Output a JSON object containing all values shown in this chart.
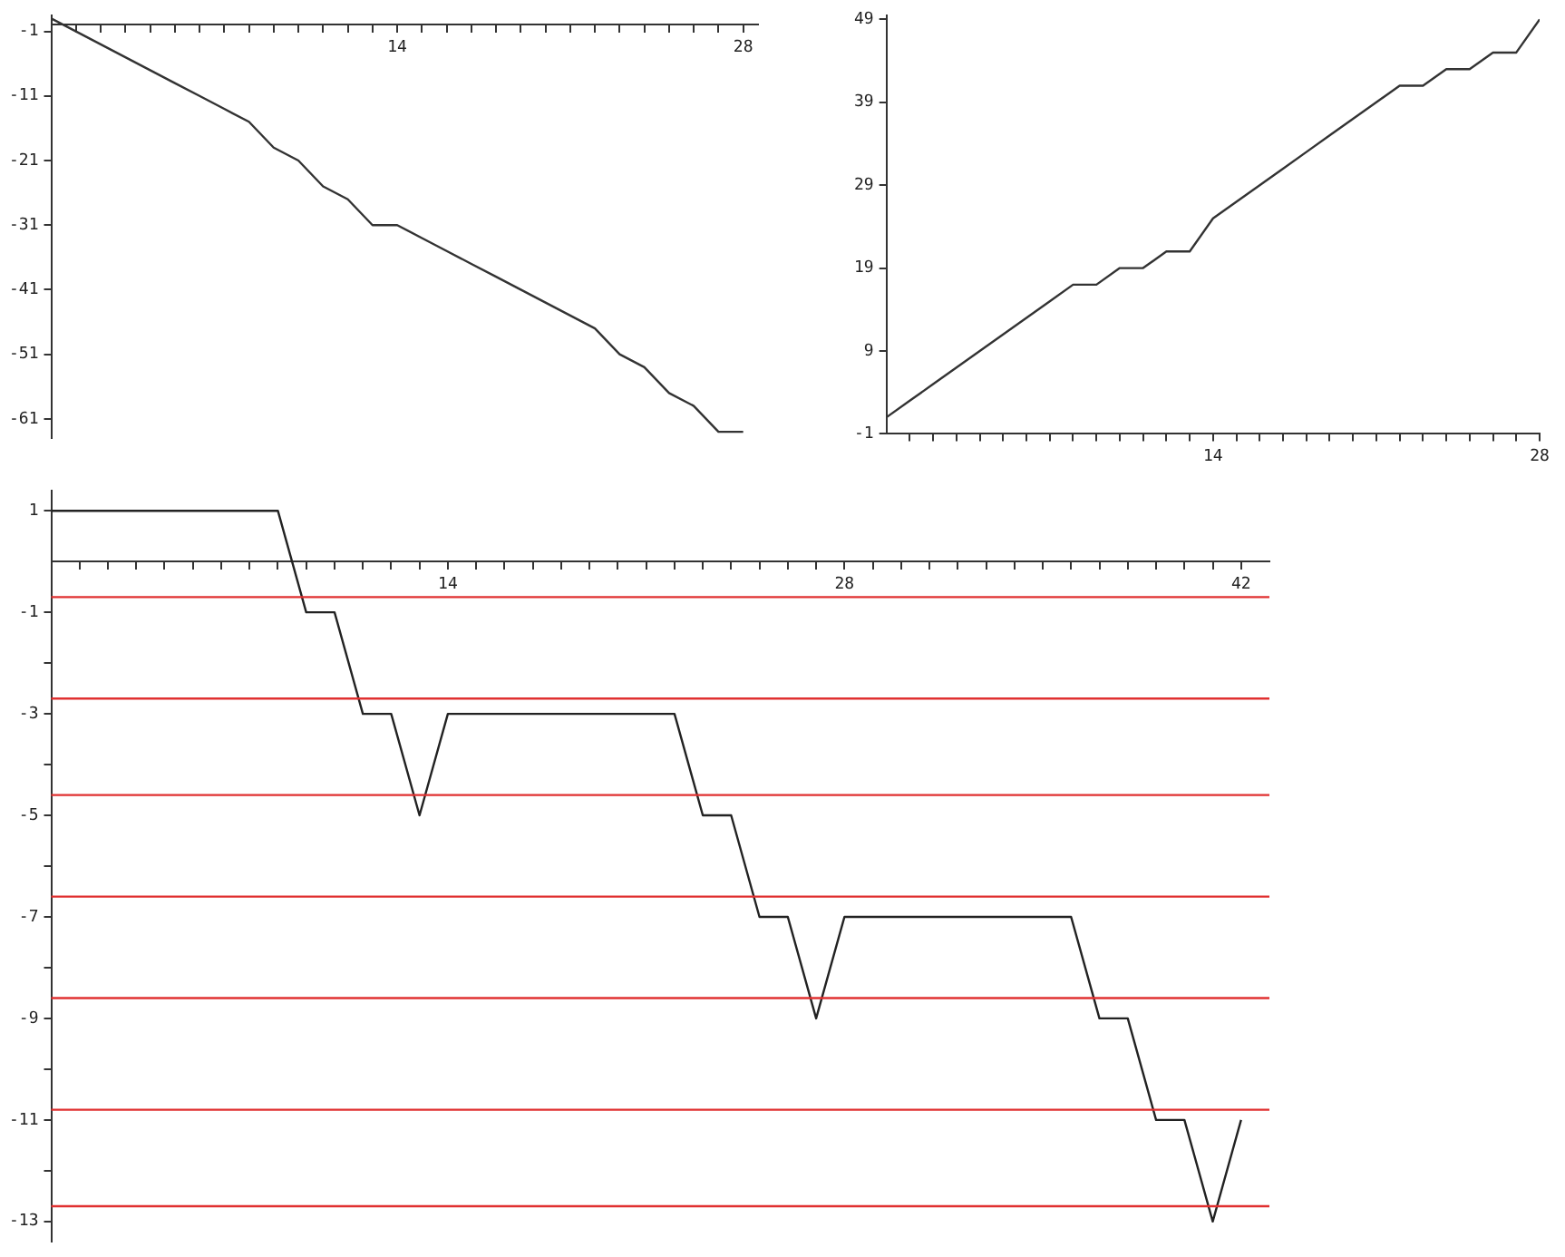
{
  "chart_data": [
    {
      "type": "line",
      "x": [
        0,
        1,
        2,
        3,
        4,
        5,
        6,
        7,
        8,
        9,
        10,
        11,
        12,
        13,
        14,
        15,
        16,
        17,
        18,
        19,
        20,
        21,
        22,
        23,
        24,
        25,
        26,
        27,
        28
      ],
      "values": [
        1,
        -1,
        -3,
        -5,
        -7,
        -9,
        -11,
        -13,
        -15,
        -19,
        -21,
        -25,
        -27,
        -31,
        -31,
        -33,
        -35,
        -37,
        -39,
        -41,
        -43,
        -45,
        -47,
        -51,
        -53,
        -57,
        -59,
        -63,
        -63
      ],
      "color": "#333333",
      "xlim": [
        0,
        28.6
      ],
      "ylim": [
        -64,
        1.5
      ],
      "xticks": [
        {
          "value": 1,
          "label": null
        },
        {
          "value": 2,
          "label": null
        },
        {
          "value": 3,
          "label": null
        },
        {
          "value": 4,
          "label": null
        },
        {
          "value": 5,
          "label": null
        },
        {
          "value": 6,
          "label": null
        },
        {
          "value": 7,
          "label": null
        },
        {
          "value": 8,
          "label": null
        },
        {
          "value": 9,
          "label": null
        },
        {
          "value": 10,
          "label": null
        },
        {
          "value": 11,
          "label": null
        },
        {
          "value": 12,
          "label": null
        },
        {
          "value": 13,
          "label": null
        },
        14,
        {
          "value": 15,
          "label": null
        },
        {
          "value": 16,
          "label": null
        },
        {
          "value": 17,
          "label": null
        },
        {
          "value": 18,
          "label": null
        },
        {
          "value": 19,
          "label": null
        },
        {
          "value": 20,
          "label": null
        },
        {
          "value": 21,
          "label": null
        },
        {
          "value": 22,
          "label": null
        },
        {
          "value": 23,
          "label": null
        },
        {
          "value": 24,
          "label": null
        },
        {
          "value": 25,
          "label": null
        },
        {
          "value": 26,
          "label": null
        },
        {
          "value": 27,
          "label": null
        },
        28
      ],
      "yticks": [
        -1,
        -11,
        -21,
        -31,
        -41,
        -51,
        -61
      ],
      "grid": false,
      "legend": false,
      "marker": "none",
      "line_style": "solid"
    },
    {
      "type": "line",
      "x": [
        0,
        1,
        2,
        3,
        4,
        5,
        6,
        7,
        8,
        9,
        10,
        11,
        12,
        13,
        14,
        15,
        16,
        17,
        18,
        19,
        20,
        21,
        22,
        23,
        24,
        25,
        26,
        27,
        28
      ],
      "values": [
        1,
        3,
        5,
        7,
        9,
        11,
        13,
        15,
        17,
        17,
        19,
        19,
        21,
        21,
        25,
        27,
        29,
        31,
        33,
        35,
        37,
        39,
        41,
        41,
        43,
        43,
        45,
        45,
        49
      ],
      "color": "#333333",
      "xlim": [
        0,
        28
      ],
      "ylim": [
        -1,
        49.5
      ],
      "xticks": [
        {
          "value": 1,
          "label": null
        },
        {
          "value": 2,
          "label": null
        },
        {
          "value": 3,
          "label": null
        },
        {
          "value": 4,
          "label": null
        },
        {
          "value": 5,
          "label": null
        },
        {
          "value": 6,
          "label": null
        },
        {
          "value": 7,
          "label": null
        },
        {
          "value": 8,
          "label": null
        },
        {
          "value": 9,
          "label": null
        },
        {
          "value": 10,
          "label": null
        },
        {
          "value": 11,
          "label": null
        },
        {
          "value": 12,
          "label": null
        },
        {
          "value": 13,
          "label": null
        },
        14,
        {
          "value": 15,
          "label": null
        },
        {
          "value": 16,
          "label": null
        },
        {
          "value": 17,
          "label": null
        },
        {
          "value": 18,
          "label": null
        },
        {
          "value": 19,
          "label": null
        },
        {
          "value": 20,
          "label": null
        },
        {
          "value": 21,
          "label": null
        },
        {
          "value": 22,
          "label": null
        },
        {
          "value": 23,
          "label": null
        },
        {
          "value": 24,
          "label": null
        },
        {
          "value": 25,
          "label": null
        },
        {
          "value": 26,
          "label": null
        },
        {
          "value": 27,
          "label": null
        },
        28
      ],
      "yticks": [
        -1,
        9,
        19,
        29,
        39,
        49
      ],
      "grid": false,
      "legend": false,
      "marker": "none",
      "line_style": "solid"
    },
    {
      "type": "line",
      "x": [
        0,
        1,
        2,
        3,
        4,
        5,
        6,
        7,
        8,
        9,
        10,
        11,
        12,
        13,
        14,
        15,
        16,
        17,
        18,
        19,
        20,
        21,
        22,
        23,
        24,
        25,
        26,
        27,
        28,
        29,
        30,
        31,
        32,
        33,
        34,
        35,
        36,
        37,
        38,
        39,
        40,
        41,
        42
      ],
      "values": [
        1,
        1,
        1,
        1,
        1,
        1,
        1,
        1,
        1,
        -1,
        -1,
        -3,
        -3,
        -5,
        -3,
        -3,
        -3,
        -3,
        -3,
        -3,
        -3,
        -3,
        -3,
        -5,
        -5,
        -7,
        -7,
        -9,
        -7,
        -7,
        -7,
        -7,
        -7,
        -7,
        -7,
        -7,
        -7,
        -9,
        -9,
        -11,
        -11,
        -13,
        -11
      ],
      "color": "#222222",
      "xlim": [
        0,
        43
      ],
      "ylim": [
        -13.4,
        1.4
      ],
      "xticks": [
        {
          "value": 1,
          "label": null
        },
        {
          "value": 2,
          "label": null
        },
        {
          "value": 3,
          "label": null
        },
        {
          "value": 4,
          "label": null
        },
        {
          "value": 5,
          "label": null
        },
        {
          "value": 6,
          "label": null
        },
        {
          "value": 7,
          "label": null
        },
        {
          "value": 8,
          "label": null
        },
        {
          "value": 9,
          "label": null
        },
        {
          "value": 10,
          "label": null
        },
        {
          "value": 11,
          "label": null
        },
        {
          "value": 12,
          "label": null
        },
        {
          "value": 13,
          "label": null
        },
        14,
        {
          "value": 15,
          "label": null
        },
        {
          "value": 16,
          "label": null
        },
        {
          "value": 17,
          "label": null
        },
        {
          "value": 18,
          "label": null
        },
        {
          "value": 19,
          "label": null
        },
        {
          "value": 20,
          "label": null
        },
        {
          "value": 21,
          "label": null
        },
        {
          "value": 22,
          "label": null
        },
        {
          "value": 23,
          "label": null
        },
        {
          "value": 24,
          "label": null
        },
        {
          "value": 25,
          "label": null
        },
        {
          "value": 26,
          "label": null
        },
        {
          "value": 27,
          "label": null
        },
        28,
        {
          "value": 29,
          "label": null
        },
        {
          "value": 30,
          "label": null
        },
        {
          "value": 31,
          "label": null
        },
        {
          "value": 32,
          "label": null
        },
        {
          "value": 33,
          "label": null
        },
        {
          "value": 34,
          "label": null
        },
        {
          "value": 35,
          "label": null
        },
        {
          "value": 36,
          "label": null
        },
        {
          "value": 37,
          "label": null
        },
        {
          "value": 38,
          "label": null
        },
        {
          "value": 39,
          "label": null
        },
        {
          "value": 40,
          "label": null
        },
        {
          "value": 41,
          "label": null
        },
        42
      ],
      "yticks": [
        1,
        -1,
        {
          "value": -2,
          "label": null
        },
        -3,
        {
          "value": -4,
          "label": null
        },
        -5,
        {
          "value": -6,
          "label": null
        },
        -7,
        {
          "value": -8,
          "label": null
        },
        -9,
        {
          "value": -10,
          "label": null
        },
        -11,
        {
          "value": -12,
          "label": null
        },
        -13
      ],
      "ref_lines": [
        {
          "axis": "y",
          "value": -0.7,
          "color": "#e03030"
        },
        {
          "axis": "y",
          "value": -2.7,
          "color": "#e03030"
        },
        {
          "axis": "y",
          "value": -4.6,
          "color": "#e03030"
        },
        {
          "axis": "y",
          "value": -6.6,
          "color": "#e03030"
        },
        {
          "axis": "y",
          "value": -8.6,
          "color": "#e03030"
        },
        {
          "axis": "y",
          "value": -10.8,
          "color": "#e03030"
        },
        {
          "axis": "y",
          "value": -12.7,
          "color": "#e03030"
        }
      ],
      "grid": false,
      "legend": false,
      "marker": "none",
      "line_style": "solid"
    }
  ]
}
